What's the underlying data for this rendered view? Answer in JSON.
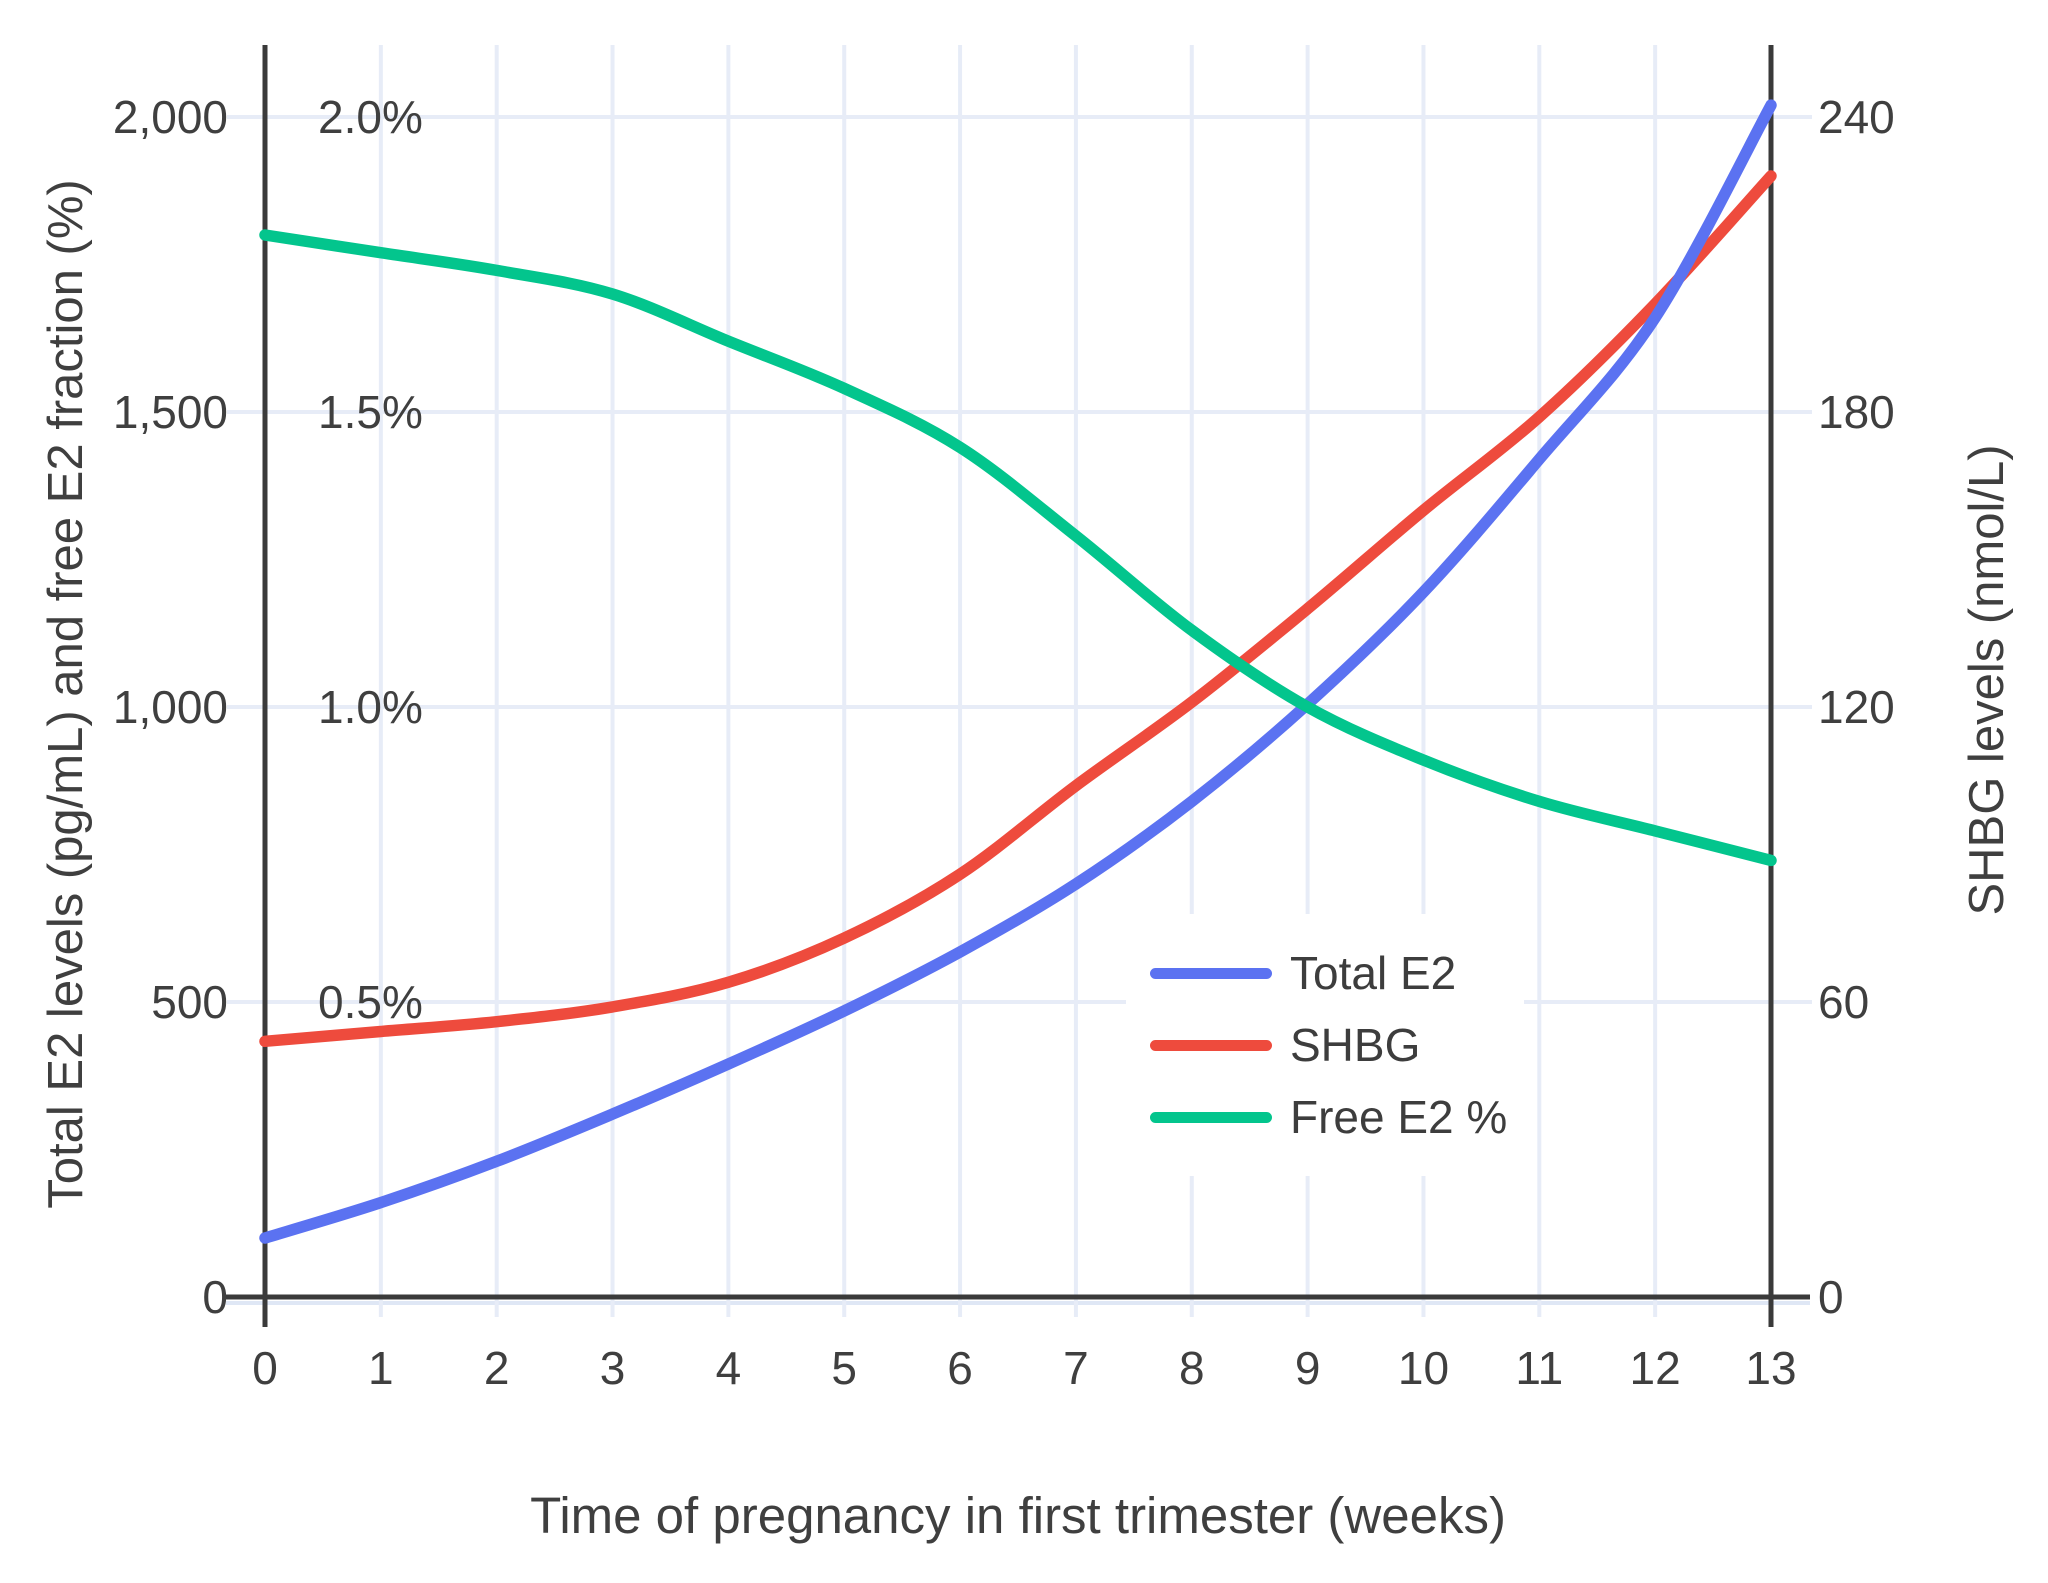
{
  "chart_data": {
    "type": "line",
    "x_label": "Time of pregnancy in first trimester (weeks)",
    "y_left_label": "Total E2 levels (pg/mL) and free E2 fraction (%)",
    "y_right_label": "SHBG levels (nmol/L)",
    "x": [
      0,
      1,
      2,
      3,
      4,
      5,
      6,
      7,
      8,
      9,
      10,
      11,
      12,
      13
    ],
    "x_tick_labels": [
      "0",
      "1",
      "2",
      "3",
      "4",
      "5",
      "6",
      "7",
      "8",
      "9",
      "10",
      "11",
      "12",
      "13"
    ],
    "ylim_left": [
      0,
      2000
    ],
    "ylim_right": [
      0,
      240
    ],
    "y_left_tick_values": [
      0,
      500,
      1000,
      1500,
      2000
    ],
    "y_left_tick_labels": [
      "0",
      "500",
      "1,000",
      "1,500",
      "2,000"
    ],
    "pct_tick_values": [
      500,
      1000,
      1500,
      2000
    ],
    "pct_tick_labels": [
      "0.5%",
      "1.0%",
      "1.5%",
      "2.0%"
    ],
    "y_right_tick_values": [
      0,
      60,
      120,
      180,
      240
    ],
    "y_right_tick_labels": [
      "0",
      "60",
      "120",
      "180",
      "240"
    ],
    "percent_axis_note": "Free E2 % is plotted on the left axis where 1.0% aligns with 1,000",
    "grid": true,
    "legend_position": "inside-right-middle",
    "series": [
      {
        "name": "Total E2",
        "axis": "left",
        "unit": "pg/mL",
        "color": "#5b72f1",
        "values": [
          100,
          160,
          230,
          310,
          395,
          485,
          585,
          700,
          840,
          1005,
          1195,
          1420,
          1660,
          2020
        ]
      },
      {
        "name": "SHBG",
        "axis": "right",
        "unit": "nmol/L",
        "color": "#ee4b3d",
        "values": [
          52,
          54,
          56,
          59,
          64,
          73,
          86,
          104,
          121,
          140,
          160,
          179,
          202,
          228
        ]
      },
      {
        "name": "Free E2 %",
        "axis": "left-percent",
        "unit": "%",
        "color": "#03c58d",
        "values": [
          1.8,
          1.77,
          1.74,
          1.7,
          1.62,
          1.54,
          1.44,
          1.29,
          1.13,
          1.0,
          0.91,
          0.84,
          0.79,
          0.74
        ]
      }
    ]
  },
  "legend": {
    "items": [
      {
        "label": "Total E2",
        "color": "#5b72f1"
      },
      {
        "label": "SHBG",
        "color": "#ee4b3d"
      },
      {
        "label": "Free E2 %",
        "color": "#03c58d"
      }
    ]
  },
  "colors": {
    "background": "#ffffff",
    "grid": "#e7ecf7",
    "grid_under_axis": "#dfe7f5",
    "axis": "#3a3a3a",
    "text": "#3f3f3f"
  }
}
